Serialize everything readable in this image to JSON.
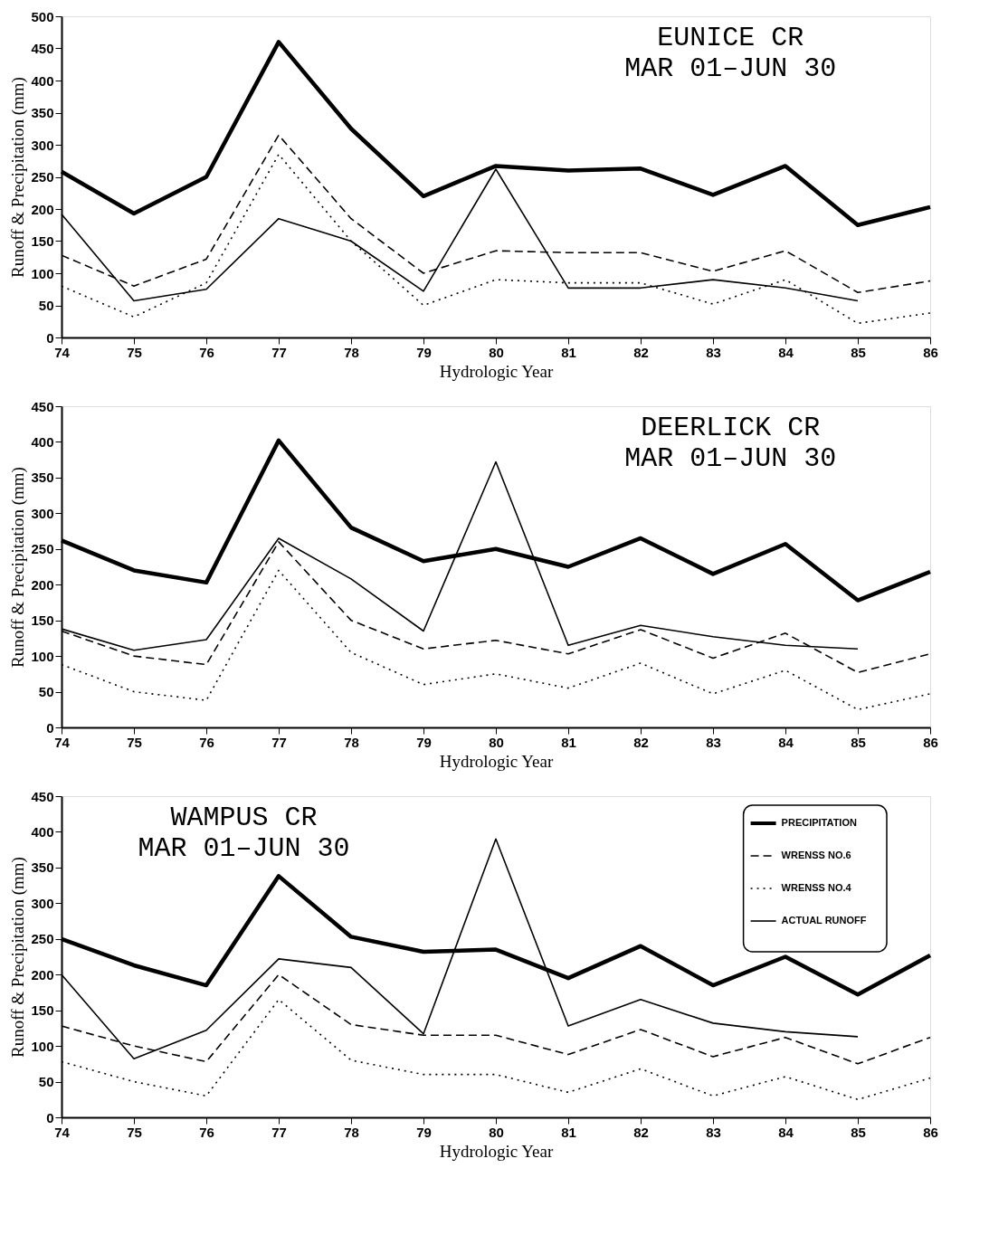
{
  "chart_data": [
    {
      "type": "line",
      "title": "EUNICE CR",
      "subtitle": "MAR 01–JUN 30",
      "xlabel": "Hydrologic Year",
      "ylabel": "Runoff & Precipitation (mm)",
      "x": [
        74,
        75,
        76,
        77,
        78,
        79,
        80,
        81,
        82,
        83,
        84,
        85,
        86
      ],
      "xlim": [
        74,
        86
      ],
      "xticks": [
        74,
        75,
        76,
        77,
        78,
        79,
        80,
        81,
        82,
        83,
        84,
        85,
        86
      ],
      "ylim": [
        0,
        500
      ],
      "yticks": [
        0,
        50,
        100,
        150,
        200,
        250,
        300,
        350,
        400,
        450,
        500
      ],
      "grid": false,
      "legend": false,
      "marker": "none",
      "series": [
        {
          "color": "#000000",
          "line_style": "solid",
          "values": [
            258,
            193,
            250,
            460,
            325,
            220,
            267,
            260,
            263,
            222,
            267,
            175,
            203
          ]
        },
        {
          "color": "#000000",
          "line_style": "dashed",
          "values": [
            128,
            80,
            122,
            315,
            185,
            100,
            135,
            132,
            132,
            103,
            135,
            70,
            88
          ]
        },
        {
          "color": "#000000",
          "line_style": "dotted",
          "values": [
            80,
            32,
            85,
            285,
            150,
            50,
            90,
            85,
            85,
            52,
            90,
            22,
            38
          ]
        },
        {
          "color": "#000000",
          "line_style": "solid",
          "values": [
            192,
            57,
            75,
            185,
            150,
            72,
            262,
            77,
            77,
            90,
            77,
            57,
            null
          ]
        }
      ]
    },
    {
      "type": "line",
      "title": "DEERLICK CR",
      "subtitle": "MAR 01–JUN 30",
      "xlabel": "Hydrologic Year",
      "ylabel": "Runoff & Precipitation (mm)",
      "x": [
        74,
        75,
        76,
        77,
        78,
        79,
        80,
        81,
        82,
        83,
        84,
        85,
        86
      ],
      "xlim": [
        74,
        86
      ],
      "xticks": [
        74,
        75,
        76,
        77,
        78,
        79,
        80,
        81,
        82,
        83,
        84,
        85,
        86
      ],
      "ylim": [
        0,
        450
      ],
      "yticks": [
        0,
        50,
        100,
        150,
        200,
        250,
        300,
        350,
        400,
        450
      ],
      "grid": false,
      "legend": false,
      "marker": "none",
      "series": [
        {
          "color": "#000000",
          "line_style": "solid",
          "values": [
            262,
            220,
            203,
            402,
            280,
            233,
            250,
            225,
            265,
            215,
            257,
            178,
            218
          ]
        },
        {
          "color": "#000000",
          "line_style": "dashed",
          "values": [
            135,
            100,
            88,
            260,
            150,
            110,
            122,
            103,
            137,
            97,
            132,
            77,
            103
          ]
        },
        {
          "color": "#000000",
          "line_style": "dotted",
          "values": [
            88,
            50,
            38,
            220,
            105,
            60,
            75,
            55,
            90,
            47,
            80,
            25,
            47
          ]
        },
        {
          "color": "#000000",
          "line_style": "solid",
          "values": [
            138,
            108,
            123,
            265,
            208,
            135,
            372,
            115,
            143,
            127,
            115,
            110,
            null
          ]
        }
      ]
    },
    {
      "type": "line",
      "title": "WAMPUS CR",
      "subtitle": "MAR 01–JUN 30",
      "xlabel": "Hydrologic Year",
      "ylabel": "Runoff & Precipitation (mm)",
      "x": [
        74,
        75,
        76,
        77,
        78,
        79,
        80,
        81,
        82,
        83,
        84,
        85,
        86
      ],
      "xlim": [
        74,
        86
      ],
      "xticks": [
        74,
        75,
        76,
        77,
        78,
        79,
        80,
        81,
        82,
        83,
        84,
        85,
        86
      ],
      "ylim": [
        0,
        450
      ],
      "yticks": [
        0,
        50,
        100,
        150,
        200,
        250,
        300,
        350,
        400,
        450
      ],
      "grid": false,
      "legend": "top right",
      "marker": "none",
      "series": [
        {
          "name": "PRECIPITATION",
          "color": "#000000",
          "line_style": "solid",
          "values": [
            250,
            213,
            185,
            338,
            253,
            232,
            235,
            195,
            240,
            185,
            225,
            172,
            227
          ]
        },
        {
          "name": "WRENSS NO.6",
          "color": "#000000",
          "line_style": "dashed",
          "values": [
            128,
            100,
            78,
            200,
            130,
            115,
            115,
            88,
            123,
            85,
            112,
            75,
            112
          ]
        },
        {
          "name": "WRENSS NO.4",
          "color": "#000000",
          "line_style": "dotted",
          "values": [
            78,
            50,
            30,
            165,
            80,
            60,
            60,
            35,
            68,
            30,
            57,
            25,
            55
          ]
        },
        {
          "name": "ACTUAL RUNOFF",
          "color": "#000000",
          "line_style": "solid",
          "values": [
            200,
            82,
            122,
            222,
            210,
            117,
            390,
            128,
            165,
            132,
            120,
            113,
            null
          ]
        }
      ]
    }
  ]
}
